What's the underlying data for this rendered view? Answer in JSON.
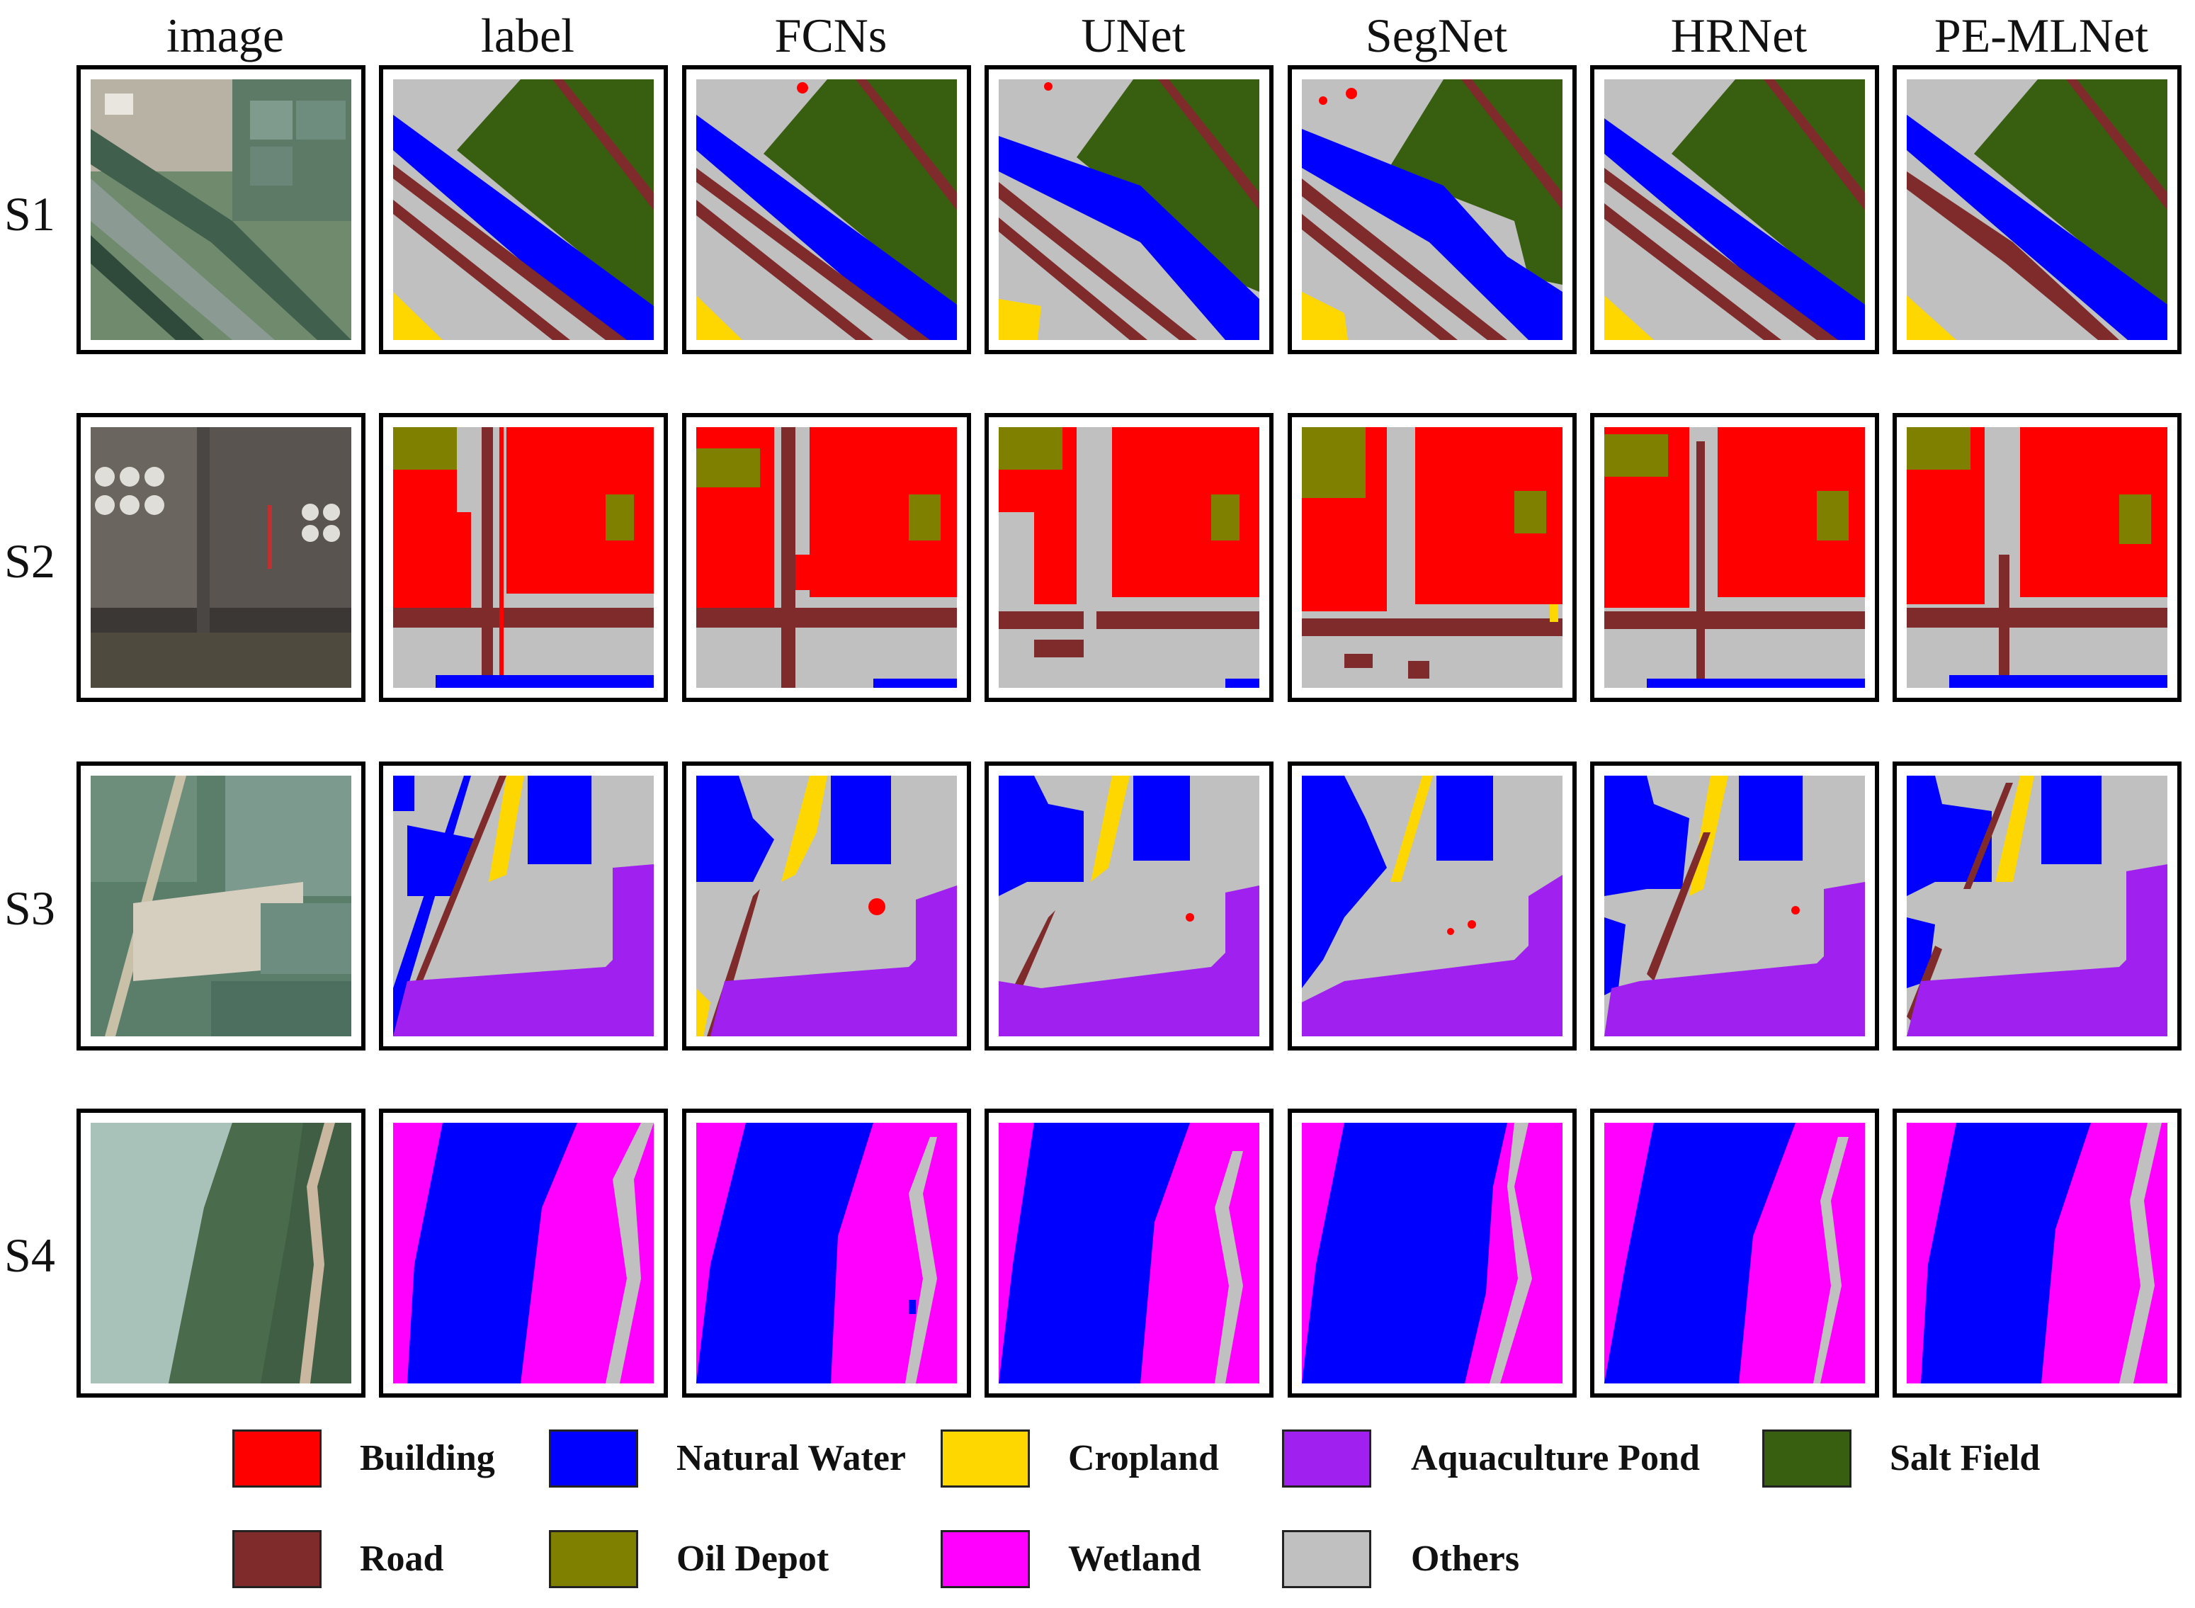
{
  "columns": [
    "image",
    "label",
    "FCNs",
    "UNet",
    "SegNet",
    "HRNet",
    "PE-MLNet"
  ],
  "rows": [
    "S1",
    "S2",
    "S3",
    "S4"
  ],
  "legend": [
    {
      "name": "Building",
      "color": "#ff0000"
    },
    {
      "name": "Natural Water",
      "color": "#0000ff"
    },
    {
      "name": "Cropland",
      "color": "#ffd700"
    },
    {
      "name": "Aquaculture Pond",
      "color": "#a020f0"
    },
    {
      "name": "Salt Field",
      "color": "#385e0f"
    },
    {
      "name": "Road",
      "color": "#7f2b2b"
    },
    {
      "name": "Oil Depot",
      "color": "#808000"
    },
    {
      "name": "Wetland",
      "color": "#ff00ff"
    },
    {
      "name": "Others",
      "color": "#c0c0c0"
    }
  ]
}
